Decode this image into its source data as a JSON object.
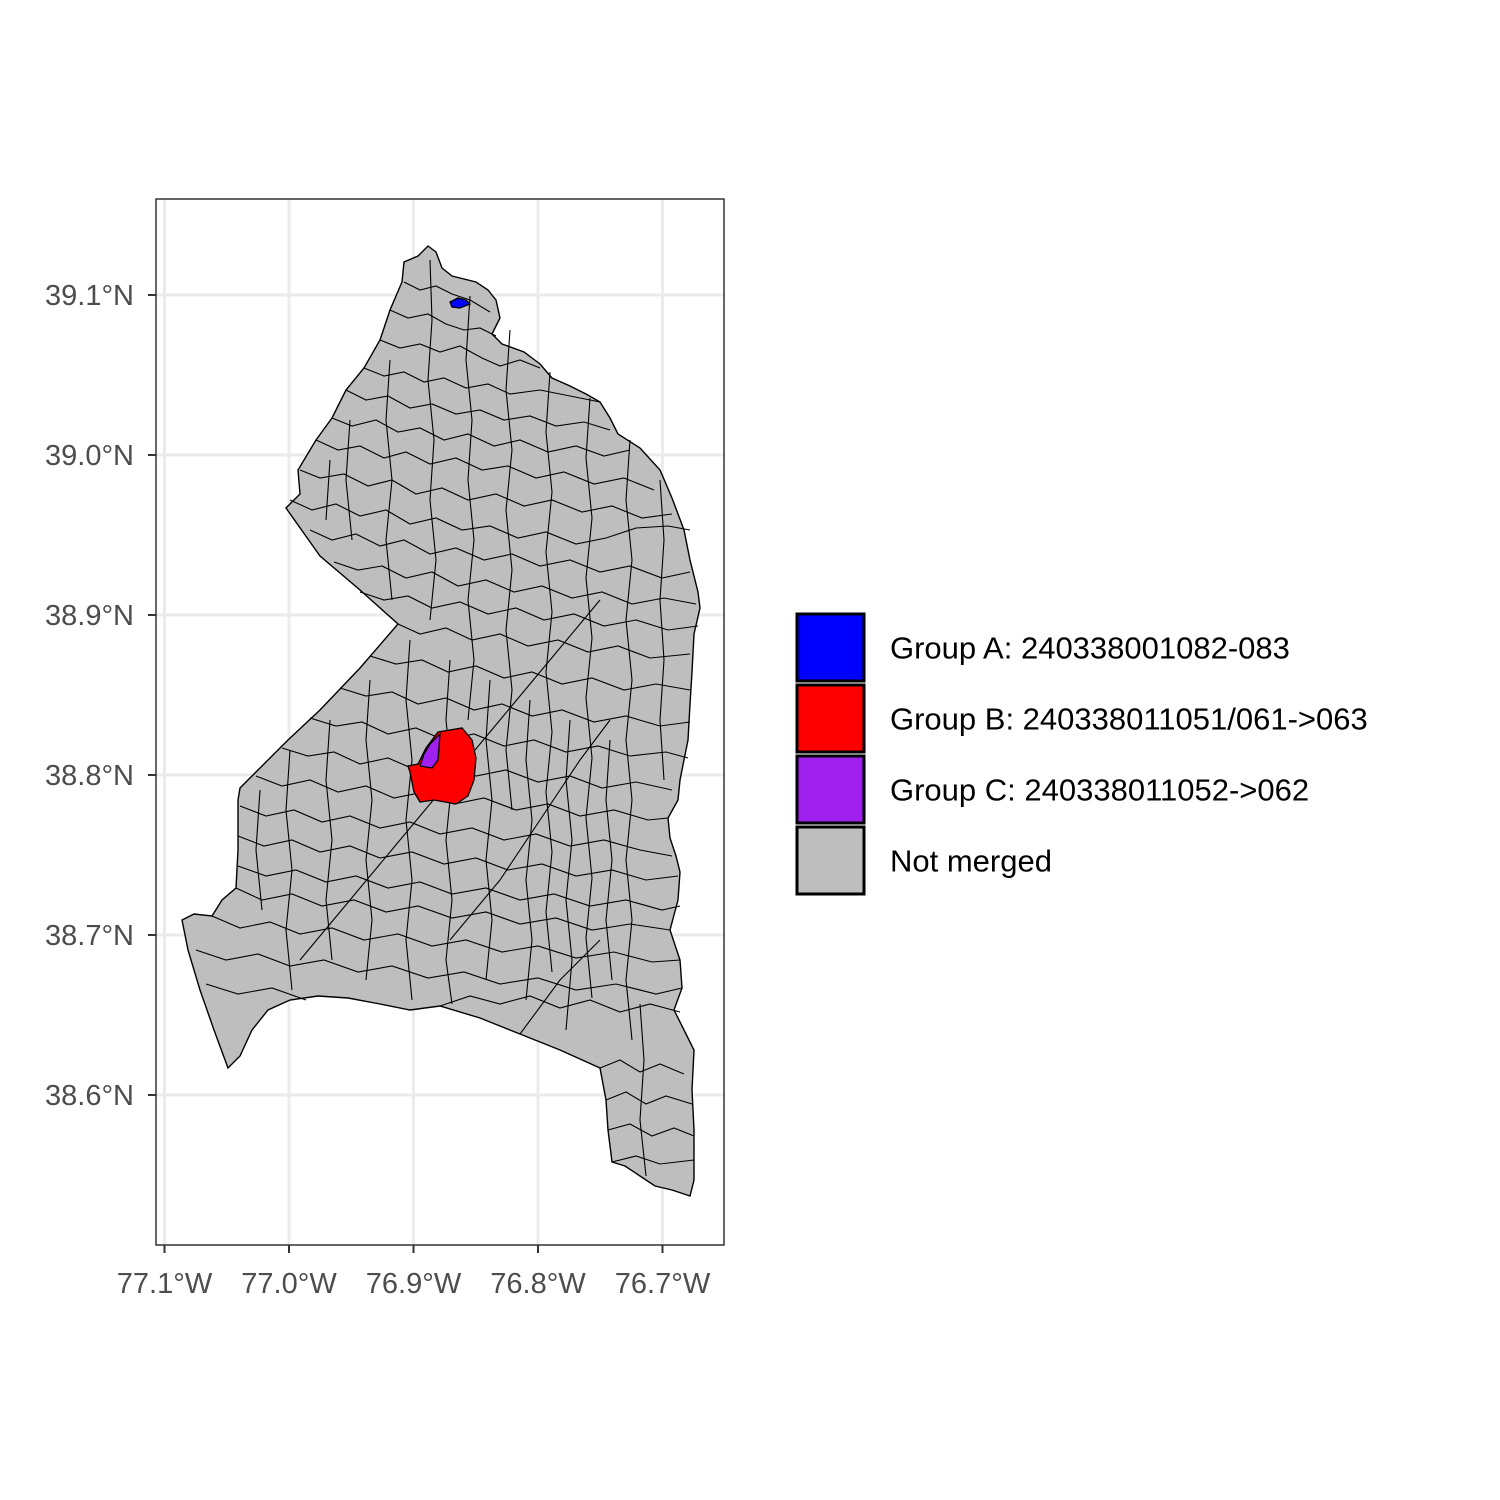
{
  "map": {
    "title": "",
    "xlabel": "",
    "ylabel": "",
    "lon_range": [
      -77.1,
      -76.66
    ],
    "lat_range": [
      38.51,
      39.16
    ],
    "grid": true,
    "x_ticks": [
      {
        "value": -77.1,
        "label": "77.1°W"
      },
      {
        "value": -77.0,
        "label": "77.0°W"
      },
      {
        "value": -76.9,
        "label": "76.9°W"
      },
      {
        "value": -76.8,
        "label": "76.8°W"
      },
      {
        "value": -76.7,
        "label": "76.7°W"
      }
    ],
    "y_ticks": [
      {
        "value": 39.1,
        "label": "39.1°N"
      },
      {
        "value": 39.0,
        "label": "39.0°N"
      },
      {
        "value": 38.9,
        "label": "38.9°N"
      },
      {
        "value": 38.8,
        "label": "38.8°N"
      },
      {
        "value": 38.7,
        "label": "38.7°N"
      },
      {
        "value": 38.6,
        "label": "38.6°N"
      }
    ],
    "colors": {
      "group_a": "#0000ff",
      "group_b": "#ff0000",
      "group_c": "#a020f0",
      "not_merged": "#bebebe",
      "border": "#000000",
      "grid": "#ebebeb",
      "panel_border": "#333333"
    },
    "legend": {
      "position": "right",
      "items": [
        {
          "key": "group_a",
          "label": "Group A: 240338001082-083",
          "color": "#0000ff"
        },
        {
          "key": "group_b",
          "label": "Group B: 240338011051/061->063",
          "color": "#ff0000"
        },
        {
          "key": "group_c",
          "label": "Group C: 240338011052->062",
          "color": "#a020f0"
        },
        {
          "key": "not_merged",
          "label": "Not merged",
          "color": "#bebebe"
        }
      ]
    }
  }
}
